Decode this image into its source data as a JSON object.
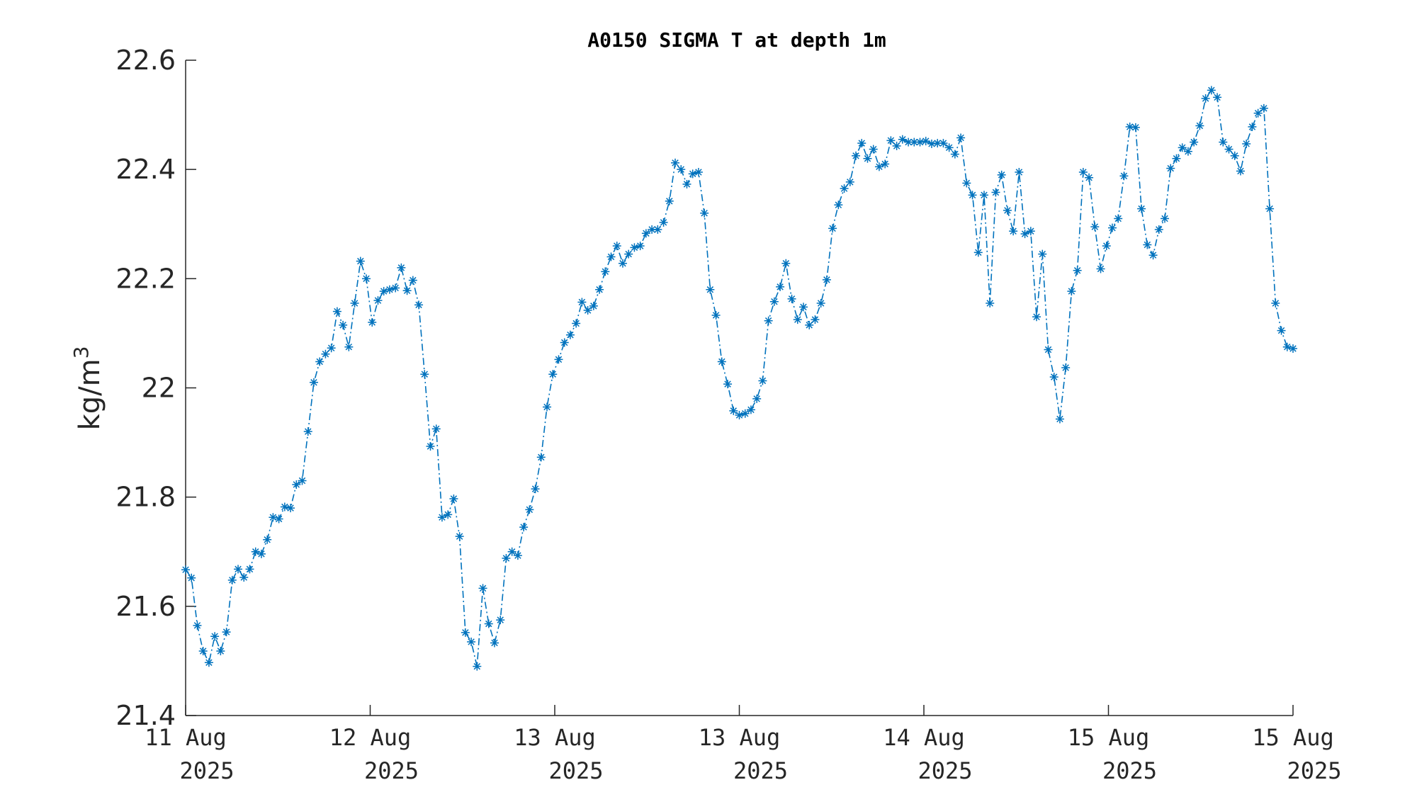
{
  "chart_data": {
    "type": "line",
    "title": "A0150 SIGMA T at depth 1m",
    "ylabel": "kg/m",
    "ylabel_superscript": "3",
    "xlabel": "",
    "ylim": [
      21.4,
      22.6
    ],
    "xlim": [
      0,
      6
    ],
    "y_ticks": [
      {
        "value": 21.4,
        "label": "21.4"
      },
      {
        "value": 21.6,
        "label": "21.6"
      },
      {
        "value": 21.8,
        "label": "21.8"
      },
      {
        "value": 22.0,
        "label": "22"
      },
      {
        "value": 22.2,
        "label": "22.2"
      },
      {
        "value": 22.4,
        "label": "22.4"
      },
      {
        "value": 22.6,
        "label": "22.6"
      }
    ],
    "x_ticks": [
      {
        "value": 0,
        "line1": "11 Aug",
        "line2": "2025"
      },
      {
        "value": 1,
        "line1": "12 Aug",
        "line2": "2025"
      },
      {
        "value": 2,
        "line1": "13 Aug",
        "line2": "2025"
      },
      {
        "value": 3,
        "line1": "13 Aug",
        "line2": "2025"
      },
      {
        "value": 4,
        "line1": "14 Aug",
        "line2": "2025"
      },
      {
        "value": 5,
        "line1": "15 Aug",
        "line2": "2025"
      },
      {
        "value": 6,
        "line1": "15 Aug",
        "line2": "2025"
      }
    ],
    "grid": false,
    "series_color": "#0072BD",
    "line_style": "dash-dot",
    "marker": "asterisk",
    "series": [
      {
        "values": [
          21.667,
          21.652,
          21.565,
          21.518,
          21.497,
          21.545,
          21.518,
          21.553,
          21.648,
          21.668,
          21.653,
          21.668,
          21.7,
          21.696,
          21.722,
          21.763,
          21.76,
          21.782,
          21.78,
          21.823,
          21.83,
          21.92,
          22.01,
          22.048,
          22.062,
          22.073,
          22.14,
          22.115,
          22.075,
          22.155,
          22.232,
          22.2,
          22.12,
          22.16,
          22.177,
          22.18,
          22.183,
          22.22,
          22.178,
          22.197,
          22.152,
          22.025,
          21.893,
          21.925,
          21.763,
          21.768,
          21.797,
          21.728,
          21.552,
          21.535,
          21.49,
          21.633,
          21.568,
          21.533,
          21.575,
          21.688,
          21.7,
          21.693,
          21.745,
          21.777,
          21.815,
          21.873,
          21.965,
          22.025,
          22.052,
          22.083,
          22.097,
          22.118,
          22.157,
          22.142,
          22.15,
          22.18,
          22.213,
          22.24,
          22.26,
          22.228,
          22.245,
          22.257,
          22.26,
          22.283,
          22.29,
          22.29,
          22.303,
          22.342,
          22.412,
          22.4,
          22.373,
          22.392,
          22.395,
          22.32,
          22.18,
          22.133,
          22.048,
          22.007,
          21.958,
          21.95,
          21.953,
          21.96,
          21.98,
          22.013,
          22.123,
          22.158,
          22.185,
          22.228,
          22.163,
          22.125,
          22.148,
          22.115,
          22.125,
          22.155,
          22.198,
          22.292,
          22.335,
          22.365,
          22.377,
          22.425,
          22.448,
          22.42,
          22.437,
          22.405,
          22.41,
          22.453,
          22.443,
          22.455,
          22.45,
          22.45,
          22.45,
          22.452,
          22.447,
          22.448,
          22.448,
          22.44,
          22.428,
          22.458,
          22.375,
          22.353,
          22.248,
          22.353,
          22.155,
          22.358,
          22.39,
          22.325,
          22.287,
          22.395,
          22.282,
          22.287,
          22.13,
          22.245,
          22.07,
          22.02,
          21.943,
          22.037,
          22.177,
          22.215,
          22.395,
          22.385,
          22.295,
          22.218,
          22.26,
          22.293,
          22.31,
          22.388,
          22.478,
          22.477,
          22.328,
          22.262,
          22.243,
          22.29,
          22.31,
          22.402,
          22.42,
          22.44,
          22.433,
          22.45,
          22.48,
          22.53,
          22.545,
          22.532,
          22.45,
          22.437,
          22.425,
          22.397,
          22.447,
          22.478,
          22.503,
          22.512,
          22.328,
          22.155,
          22.105,
          22.075,
          22.072
        ]
      }
    ]
  }
}
